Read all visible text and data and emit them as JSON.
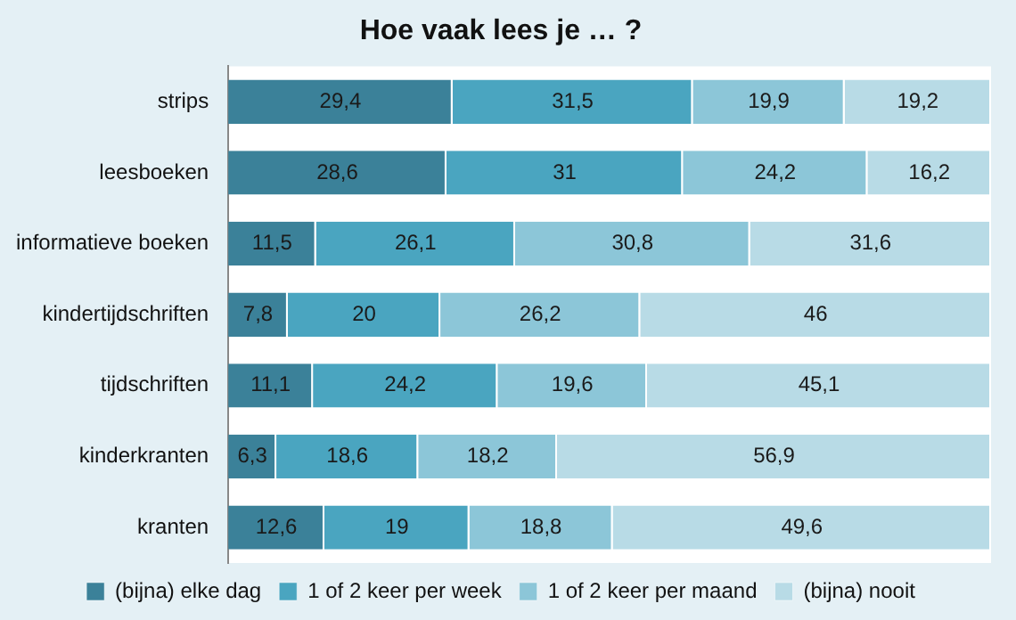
{
  "chart_data": {
    "type": "bar",
    "title": "Hoe vaak lees je … ?",
    "orientation": "horizontal",
    "stacked": true,
    "legend": "bottom",
    "tick_labels": "y",
    "categories": [
      "strips",
      "leesboeken",
      "informatieve boeken",
      "kindertijdschriften",
      "tijdschriften",
      "kinderkranten",
      "kranten"
    ],
    "series": [
      {
        "name": "(bijna) elke dag",
        "color": "#3b8199",
        "values": [
          29.4,
          28.6,
          11.5,
          7.8,
          11.1,
          6.3,
          12.6
        ],
        "value_labels": [
          "29,4",
          "28,6",
          "11,5",
          "7,8",
          "11,1",
          "6,3",
          "12,6"
        ]
      },
      {
        "name": "1 of 2 keer per week",
        "color": "#4aa5c0",
        "values": [
          31.5,
          31,
          26.1,
          20,
          24.2,
          18.6,
          19
        ],
        "value_labels": [
          "31,5",
          "31",
          "26,1",
          "20",
          "24,2",
          "18,6",
          "19"
        ]
      },
      {
        "name": "1 of 2 keer per maand",
        "color": "#8cc6d8",
        "values": [
          19.9,
          24.2,
          30.8,
          26.2,
          19.6,
          18.2,
          18.8
        ],
        "value_labels": [
          "19,9",
          "24,2",
          "30,8",
          "26,2",
          "19,6",
          "18,2",
          "18,8"
        ]
      },
      {
        "name": "(bijna) nooit",
        "color": "#b8dbe6",
        "values": [
          19.2,
          16.2,
          31.6,
          46,
          45.1,
          56.9,
          49.6
        ],
        "value_labels": [
          "19,2",
          "16,2",
          "31,6",
          "46",
          "45,1",
          "56,9",
          "49,6"
        ]
      }
    ]
  }
}
